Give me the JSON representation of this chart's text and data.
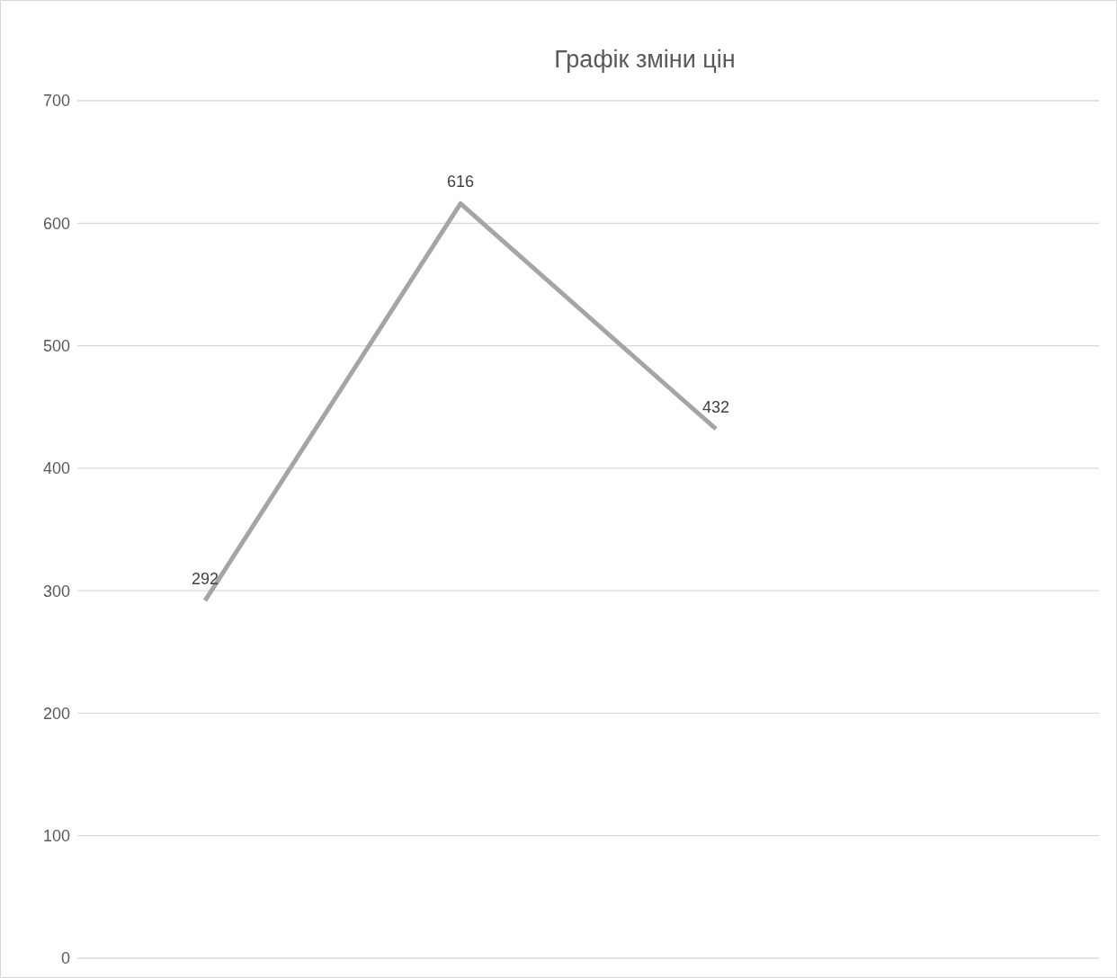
{
  "chart_data": {
    "type": "line",
    "title": "Графік зміни цін",
    "categories": [
      null,
      null,
      null,
      null
    ],
    "series": [
      {
        "color": "#a5a5a5",
        "values": [
          292,
          616,
          432,
          null
        ]
      }
    ],
    "ylim": [
      0,
      700
    ],
    "yticks": [
      0,
      100,
      200,
      300,
      400,
      500,
      600,
      700
    ],
    "grid": "y",
    "data_labels": true,
    "marker": "none",
    "tick_labels": "y"
  }
}
